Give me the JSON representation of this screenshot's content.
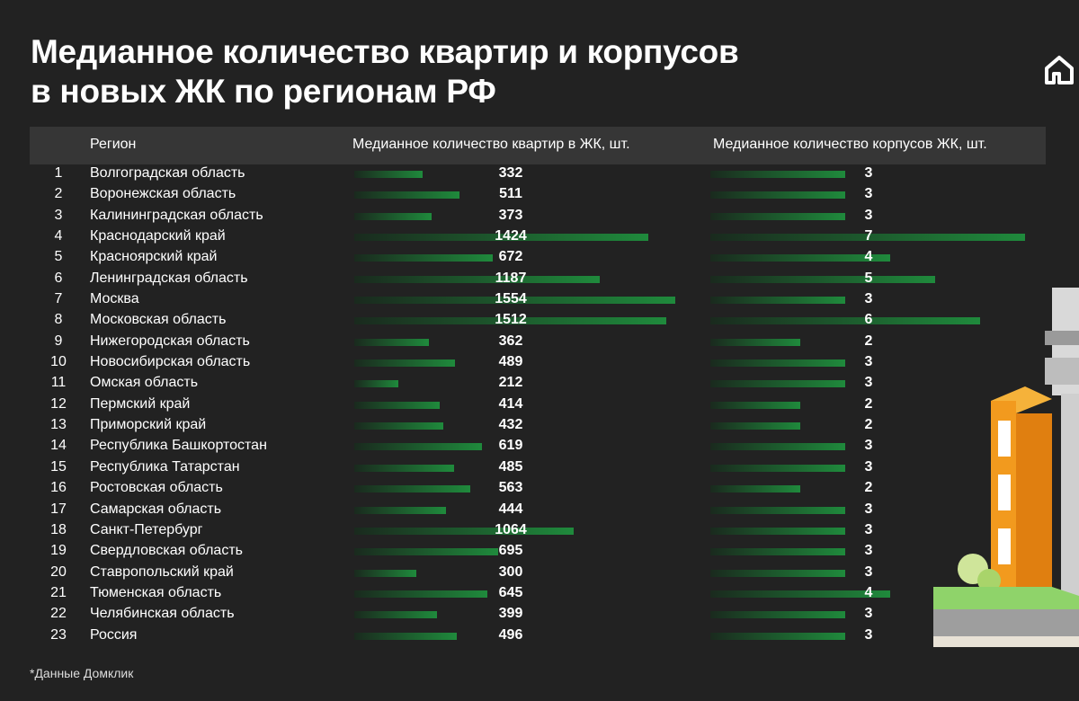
{
  "title_line1": "Медианное количество квартир и корпусов",
  "title_line2": "в новых ЖК по регионам РФ",
  "header": {
    "region": "Регион",
    "apartments": "Медианное количество квартир в ЖК, шт.",
    "buildings": "Медианное количество корпусов ЖК, шт."
  },
  "footnote": "*Данные Домклик",
  "colors": {
    "background": "#222222",
    "header": "#363636",
    "bar": "#1f8a3c",
    "text": "#ffffff"
  },
  "chart_data": {
    "type": "table",
    "columns": [
      "Регион",
      "Медианное количество квартир в ЖК, шт.",
      "Медианное количество корпусов ЖК, шт."
    ],
    "apartments_range": [
      0,
      1554
    ],
    "buildings_range": [
      0,
      7
    ],
    "rows": [
      {
        "num": "1",
        "region": "Волгоградская область",
        "apartments": 332,
        "buildings": 3
      },
      {
        "num": "2",
        "region": "Воронежская область",
        "apartments": 511,
        "buildings": 3
      },
      {
        "num": "3",
        "region": "Калининградская область",
        "apartments": 373,
        "buildings": 3
      },
      {
        "num": "4",
        "region": "Краснодарский край",
        "apartments": 1424,
        "buildings": 7
      },
      {
        "num": "5",
        "region": "Красноярский край",
        "apartments": 672,
        "buildings": 4
      },
      {
        "num": "6",
        "region": "Ленинградская область",
        "apartments": 1187,
        "buildings": 5
      },
      {
        "num": "7",
        "region": "Москва",
        "apartments": 1554,
        "buildings": 3
      },
      {
        "num": "8",
        "region": "Московская область",
        "apartments": 1512,
        "buildings": 6
      },
      {
        "num": "9",
        "region": "Нижегородская область",
        "apartments": 362,
        "buildings": 2
      },
      {
        "num": "10",
        "region": "Новосибирская область",
        "apartments": 489,
        "buildings": 3
      },
      {
        "num": "11",
        "region": "Омская область",
        "apartments": 212,
        "buildings": 3
      },
      {
        "num": "12",
        "region": "Пермский край",
        "apartments": 414,
        "buildings": 2
      },
      {
        "num": "13",
        "region": "Приморский край",
        "apartments": 432,
        "buildings": 2
      },
      {
        "num": "14",
        "region": "Республика Башкортостан",
        "apartments": 619,
        "buildings": 3
      },
      {
        "num": "15",
        "region": "Республика Татарстан",
        "apartments": 485,
        "buildings": 3
      },
      {
        "num": "16",
        "region": "Ростовская область",
        "apartments": 563,
        "buildings": 2
      },
      {
        "num": "17",
        "region": "Самарская область",
        "apartments": 444,
        "buildings": 3
      },
      {
        "num": "18",
        "region": "Санкт-Петербург",
        "apartments": 1064,
        "buildings": 3
      },
      {
        "num": "19",
        "region": "Свердловская область",
        "apartments": 695,
        "buildings": 3
      },
      {
        "num": "20",
        "region": "Ставропольский край",
        "apartments": 300,
        "buildings": 3
      },
      {
        "num": "21",
        "region": "Тюменская область",
        "apartments": 645,
        "buildings": 4
      },
      {
        "num": "22",
        "region": "Челябинская область",
        "apartments": 399,
        "buildings": 3
      },
      {
        "num": "23",
        "region": "Россия",
        "apartments": 496,
        "buildings": 3
      }
    ]
  }
}
